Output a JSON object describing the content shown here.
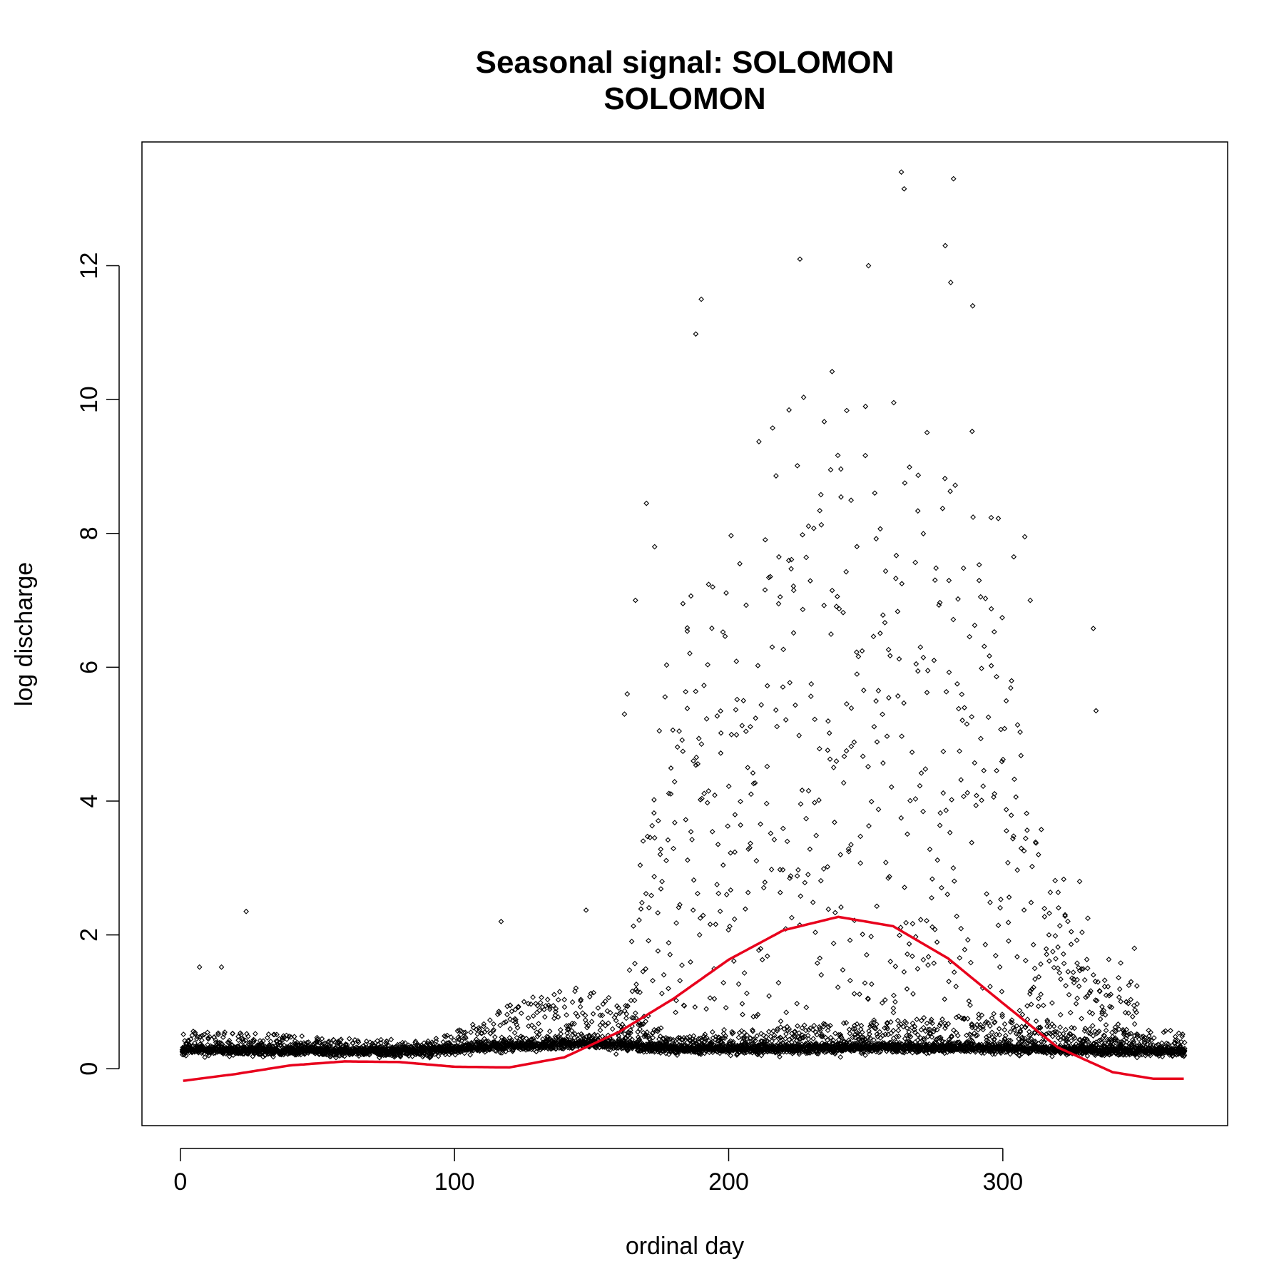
{
  "chart_data": {
    "type": "scatter",
    "title": "Seasonal signal: SOLOMON",
    "subtitle": "SOLOMON",
    "xlabel": "ordinal day",
    "ylabel": "log discharge",
    "xlim": [
      -14,
      382
    ],
    "ylim": [
      -0.85,
      13.85
    ],
    "xticks": [
      0,
      100,
      200,
      300
    ],
    "yticks": [
      0,
      2,
      4,
      6,
      8,
      10,
      12
    ],
    "grid": false,
    "point_marker": "diamond",
    "baseline": {
      "x": [
        1,
        30,
        60,
        90,
        120,
        150,
        180,
        210,
        240,
        270,
        300,
        330,
        366
      ],
      "y": [
        0.28,
        0.27,
        0.26,
        0.26,
        0.34,
        0.38,
        0.3,
        0.29,
        0.31,
        0.32,
        0.3,
        0.27,
        0.26
      ]
    },
    "upper_band": {
      "x": [
        1,
        30,
        60,
        90,
        110,
        125,
        135,
        145,
        155,
        165,
        175,
        180,
        220,
        300,
        320,
        340,
        366
      ],
      "y": [
        0.55,
        0.5,
        0.45,
        0.4,
        0.7,
        1.0,
        1.05,
        1.15,
        1.05,
        0.85,
        0.6,
        0.45,
        0.6,
        0.8,
        0.6,
        0.55,
        0.55
      ]
    },
    "high_flow_envelope": {
      "x": [
        160,
        180,
        195,
        215,
        240,
        260,
        280,
        295,
        305,
        315,
        330,
        350
      ],
      "y": [
        0.6,
        7.5,
        8.0,
        10.0,
        10.8,
        10.5,
        10.0,
        9.0,
        7.5,
        3.5,
        2.0,
        1.5
      ]
    },
    "outliers": [
      {
        "x": 24,
        "y": 2.35
      },
      {
        "x": 7,
        "y": 1.52
      },
      {
        "x": 15,
        "y": 1.52
      },
      {
        "x": 117,
        "y": 2.2
      },
      {
        "x": 148,
        "y": 2.37
      },
      {
        "x": 190,
        "y": 11.5
      },
      {
        "x": 226,
        "y": 12.1
      },
      {
        "x": 251,
        "y": 12.0
      },
      {
        "x": 263,
        "y": 13.4
      },
      {
        "x": 264,
        "y": 13.15
      },
      {
        "x": 282,
        "y": 13.3
      },
      {
        "x": 279,
        "y": 12.3
      },
      {
        "x": 281,
        "y": 11.75
      },
      {
        "x": 289,
        "y": 11.4
      },
      {
        "x": 188,
        "y": 10.98
      },
      {
        "x": 333,
        "y": 6.58
      },
      {
        "x": 334,
        "y": 5.35
      },
      {
        "x": 331,
        "y": 2.25
      },
      {
        "x": 328,
        "y": 2.8
      },
      {
        "x": 327,
        "y": 1.92
      },
      {
        "x": 343,
        "y": 1.58
      },
      {
        "x": 348,
        "y": 1.8
      },
      {
        "x": 310,
        "y": 7.0
      },
      {
        "x": 308,
        "y": 7.95
      },
      {
        "x": 304,
        "y": 7.65
      },
      {
        "x": 313,
        "y": 3.2
      },
      {
        "x": 173,
        "y": 7.8
      },
      {
        "x": 170,
        "y": 8.45
      },
      {
        "x": 166,
        "y": 7.0
      },
      {
        "x": 163,
        "y": 5.6
      },
      {
        "x": 162,
        "y": 5.3
      }
    ],
    "series": [
      {
        "type": "line",
        "color": "#e8001c",
        "x": [
          1,
          20,
          40,
          60,
          80,
          100,
          120,
          140,
          160,
          180,
          200,
          220,
          240,
          260,
          280,
          300,
          320,
          340,
          355,
          366
        ],
        "y": [
          -0.18,
          -0.08,
          0.05,
          0.11,
          0.1,
          0.03,
          0.02,
          0.17,
          0.55,
          1.05,
          1.63,
          2.07,
          2.27,
          2.13,
          1.65,
          0.98,
          0.32,
          -0.05,
          -0.15,
          -0.15
        ]
      }
    ]
  }
}
